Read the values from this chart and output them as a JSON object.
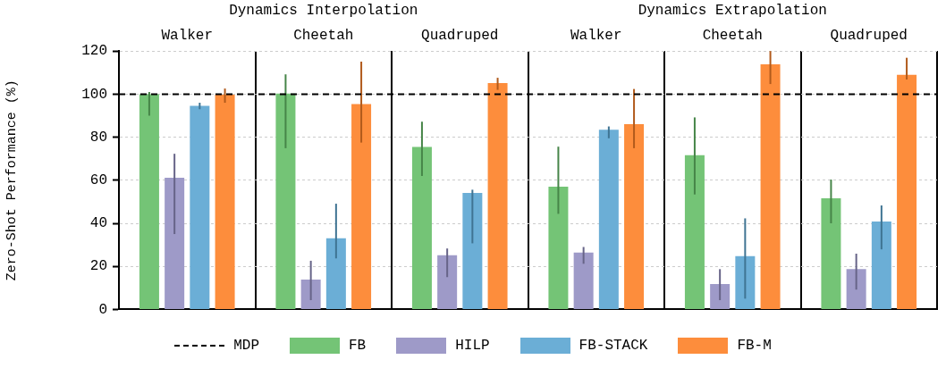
{
  "chart_data": {
    "type": "bar",
    "ylabel": "Zero-Shot Performance (%)",
    "annotations": [
      "Dynamics Interpolation",
      "Dynamics Extrapolation"
    ],
    "categories": [
      "Walker",
      "Cheetah",
      "Quadruped",
      "Walker",
      "Cheetah",
      "Quadruped"
    ],
    "ylim": [
      0,
      120
    ],
    "yticks": [
      0,
      20,
      40,
      60,
      80,
      100,
      120
    ],
    "grid": "y",
    "legend": "bottom",
    "ref_lines": [
      {
        "axis": "y",
        "value": 100,
        "label": "MDP",
        "color": "#000000",
        "line_style": "dashed"
      }
    ],
    "series": [
      {
        "name": "FB",
        "color": "#74c476",
        "values": [
          100,
          100.3,
          75.5,
          57,
          71.6,
          51.6
        ],
        "errors": [
          [
            90,
            101
          ],
          [
            74.9,
            109.2
          ],
          [
            62,
            87.2
          ],
          [
            44.4,
            75.6
          ],
          [
            53.4,
            89.2
          ],
          [
            40,
            60.3
          ]
        ]
      },
      {
        "name": "HILP",
        "color": "#9e9ac8",
        "values": [
          61.2,
          13.9,
          25.2,
          26.4,
          11.8,
          18.7
        ],
        "errors": [
          [
            35,
            72.3
          ],
          [
            4.3,
            22.6
          ],
          [
            15,
            28.3
          ],
          [
            21.2,
            29
          ],
          [
            4.3,
            18.7
          ],
          [
            9.2,
            25.9
          ]
        ]
      },
      {
        "name": "FB-STACK",
        "color": "#6baed6",
        "values": [
          94.6,
          33,
          54.1,
          83.5,
          24.7,
          40.8
        ],
        "errors": [
          [
            93,
            96
          ],
          [
            23.7,
            49.1
          ],
          [
            30.7,
            55.6
          ],
          [
            79.5,
            85
          ],
          [
            5,
            42.3
          ],
          [
            27.9,
            48.3
          ]
        ]
      },
      {
        "name": "FB-M",
        "color": "#fd8d3c",
        "values": [
          99.7,
          95.4,
          105.1,
          86.1,
          113.9,
          109
        ],
        "errors": [
          [
            96,
            102.6
          ],
          [
            77.5,
            115.1
          ],
          [
            102,
            107.6
          ],
          [
            74.9,
            102.4
          ],
          [
            104.7,
            120
          ],
          [
            106.8,
            116.9
          ]
        ]
      }
    ]
  }
}
